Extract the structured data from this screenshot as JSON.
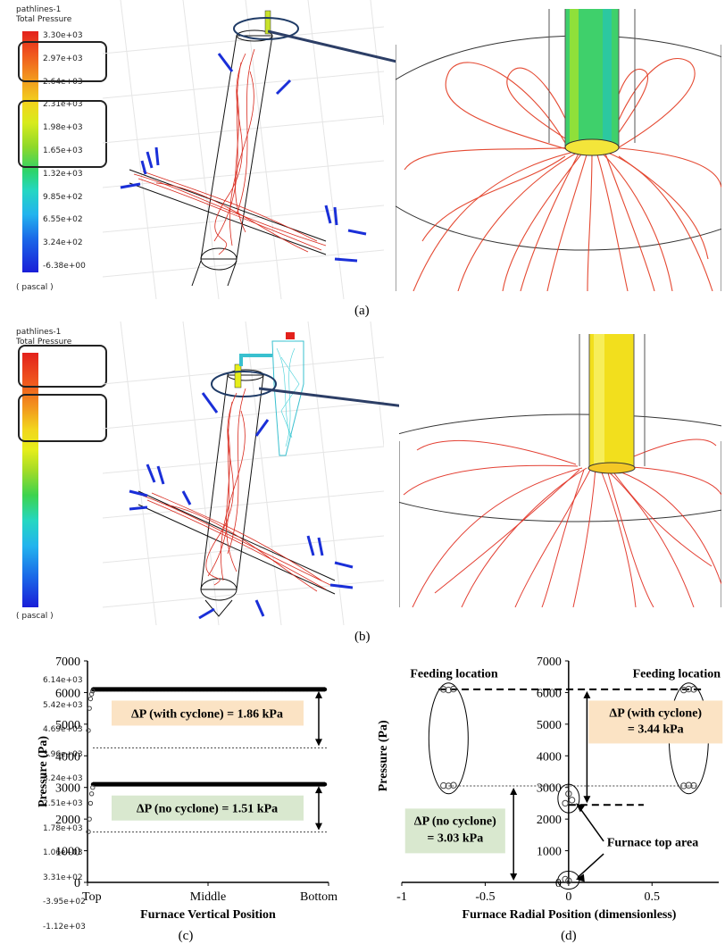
{
  "panel_a": {
    "title": "pathlines-1",
    "subtitle": "Total Pressure",
    "colorbar_ticks": [
      "3.30e+03",
      "2.97e+03",
      "2.64e+03",
      "2.31e+03",
      "1.98e+03",
      "1.65e+03",
      "1.32e+03",
      "9.85e+02",
      "6.55e+02",
      "3.24e+02",
      "-6.38e+00"
    ],
    "unit": "( pascal )",
    "label": "(a)"
  },
  "panel_b": {
    "title": "pathlines-1",
    "subtitle": "Total Pressure",
    "colorbar_ticks": [
      "6.14e+03",
      "5.42e+03",
      "4.69e+03",
      "3.96e+03",
      "3.24e+03",
      "2.51e+03",
      "1.78e+03",
      "1.06e+03",
      "3.31e+02",
      "-3.95e+02",
      "-1.12e+03"
    ],
    "unit": "( pascal )",
    "label": "(b)"
  },
  "colors": {
    "streamline": "#d8281c",
    "arrow": "#1a2fd8",
    "callout_arrow": "#2c3e66",
    "with_cyclone_box": "#fbe3c4",
    "no_cyclone_box": "#d9e8cf"
  },
  "chart_data": [
    {
      "type": "scatter",
      "label": "(c)",
      "xlabel": "Furnace Vertical Position",
      "ylabel": "Pressure (Pa)",
      "x_categories": [
        "Top",
        "Middle",
        "Bottom"
      ],
      "ylim": [
        0,
        7000
      ],
      "yticks": [
        "0",
        "1000",
        "2000",
        "3000",
        "4000",
        "5000",
        "6000",
        "7000"
      ],
      "series": [
        {
          "level": 6100,
          "start_points": [
            4800,
            5500,
            5800,
            5950,
            6050
          ]
        },
        {
          "level": 3100,
          "start_points": [
            1600,
            2000,
            2500,
            2800,
            3000
          ]
        }
      ],
      "reference_lines": [
        4250,
        1590
      ],
      "annotations": [
        {
          "text": "ΔP (with cyclone) = 1.86 kPa",
          "from": 6100,
          "to": 4250
        },
        {
          "text": "ΔP (no cyclone) = 1.51 kPa",
          "from": 3100,
          "to": 1590
        }
      ]
    },
    {
      "type": "scatter",
      "label": "(d)",
      "xlabel": "Furnace Radial Position (dimensionless)",
      "ylabel": "Pressure (Pa)",
      "xlim": [
        -1,
        0.9
      ],
      "xticks": [
        "-1",
        "-0.5",
        "0",
        "0.5"
      ],
      "ylim": [
        0,
        7000
      ],
      "yticks": [
        "0",
        "1000",
        "2000",
        "3000",
        "4000",
        "5000",
        "6000",
        "7000"
      ],
      "points": [
        {
          "x": -0.72,
          "y": 6080
        },
        {
          "x": -0.69,
          "y": 6110
        },
        {
          "x": -0.75,
          "y": 6100
        },
        {
          "x": 0.69,
          "y": 6080
        },
        {
          "x": 0.72,
          "y": 6110
        },
        {
          "x": 0.75,
          "y": 6100
        },
        {
          "x": -0.72,
          "y": 3050
        },
        {
          "x": -0.69,
          "y": 3070
        },
        {
          "x": -0.75,
          "y": 3060
        },
        {
          "x": 0.69,
          "y": 3050
        },
        {
          "x": 0.72,
          "y": 3070
        },
        {
          "x": 0.75,
          "y": 3060
        },
        {
          "x": 0.0,
          "y": 2800
        },
        {
          "x": -0.02,
          "y": 2500
        },
        {
          "x": 0.02,
          "y": 2600
        },
        {
          "x": 0.0,
          "y": 50
        },
        {
          "x": -0.02,
          "y": 100
        }
      ],
      "reference_lines": [
        6100,
        3050,
        2450
      ],
      "annotations": [
        {
          "text": "Feeding location",
          "position": "top-left"
        },
        {
          "text": "Feeding location",
          "position": "top-right"
        },
        {
          "text": "ΔP (with cyclone)",
          "text2": "= 3.44 kPa"
        },
        {
          "text": "ΔP (no cyclone)",
          "text2": "= 3.03 kPa"
        },
        {
          "text": "Furnace top area"
        }
      ]
    }
  ]
}
